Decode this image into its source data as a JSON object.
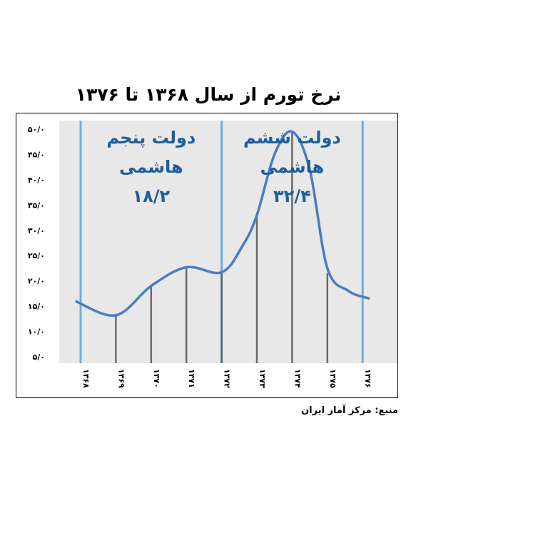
{
  "chart_data": {
    "type": "line",
    "title": "نرخ تورم از سال ۱۳۶۸ تا ۱۳۷۶",
    "x": [
      1368,
      1369,
      1370,
      1371,
      1372,
      1373,
      1374,
      1375,
      1376
    ],
    "x_tick_labels": [
      "۱۳۶۸",
      "۱۳۶۹",
      "۱۳۷۰",
      "۱۳۷۱",
      "۱۳۷۲",
      "۱۳۷۳",
      "۱۳۷۴",
      "۱۳۷۵",
      "۱۳۷۶"
    ],
    "y_tick_labels": [
      "۵/۰",
      "۱۰/۰",
      "۱۵/۰",
      "۲۰/۰",
      "۲۵/۰",
      "۳۰/۰",
      "۳۵/۰",
      "۴۰/۰",
      "۴۵/۰",
      "۵۰/۰"
    ],
    "ylim": [
      5,
      50
    ],
    "grid": false,
    "series": [
      {
        "values": [
          15.5,
          13.5,
          19.0,
          22.5,
          22.0,
          33.5,
          49.5,
          21.5,
          16.5
        ]
      }
    ],
    "curve_points": [
      [
        1367.85,
        16.0
      ],
      [
        1369.0,
        13.2
      ],
      [
        1370.0,
        19.0
      ],
      [
        1371.0,
        22.7
      ],
      [
        1372.0,
        21.7
      ],
      [
        1372.6,
        27.0
      ],
      [
        1373.0,
        33.0
      ],
      [
        1373.5,
        45.0
      ],
      [
        1374.0,
        49.5
      ],
      [
        1374.5,
        42.0
      ],
      [
        1375.0,
        22.5
      ],
      [
        1375.6,
        18.0
      ],
      [
        1376.2,
        16.5
      ]
    ],
    "region_dividers": [
      1368,
      1372,
      1376
    ],
    "annotations": [
      {
        "lines": [
          "دولت پنجم",
          "هاشمی",
          "۱۸/۲"
        ]
      },
      {
        "lines": [
          "دولت ششم",
          "هاشمی",
          "۳۲/۴"
        ]
      }
    ],
    "colors": {
      "plot_bg": "#e8e8e8",
      "line": "#4a7dc0",
      "divider": "#6aaee0",
      "drop_line": "#555555",
      "annotation": "#1f5e9a"
    }
  },
  "source_note": "منبع: مرکز آمار ایران"
}
